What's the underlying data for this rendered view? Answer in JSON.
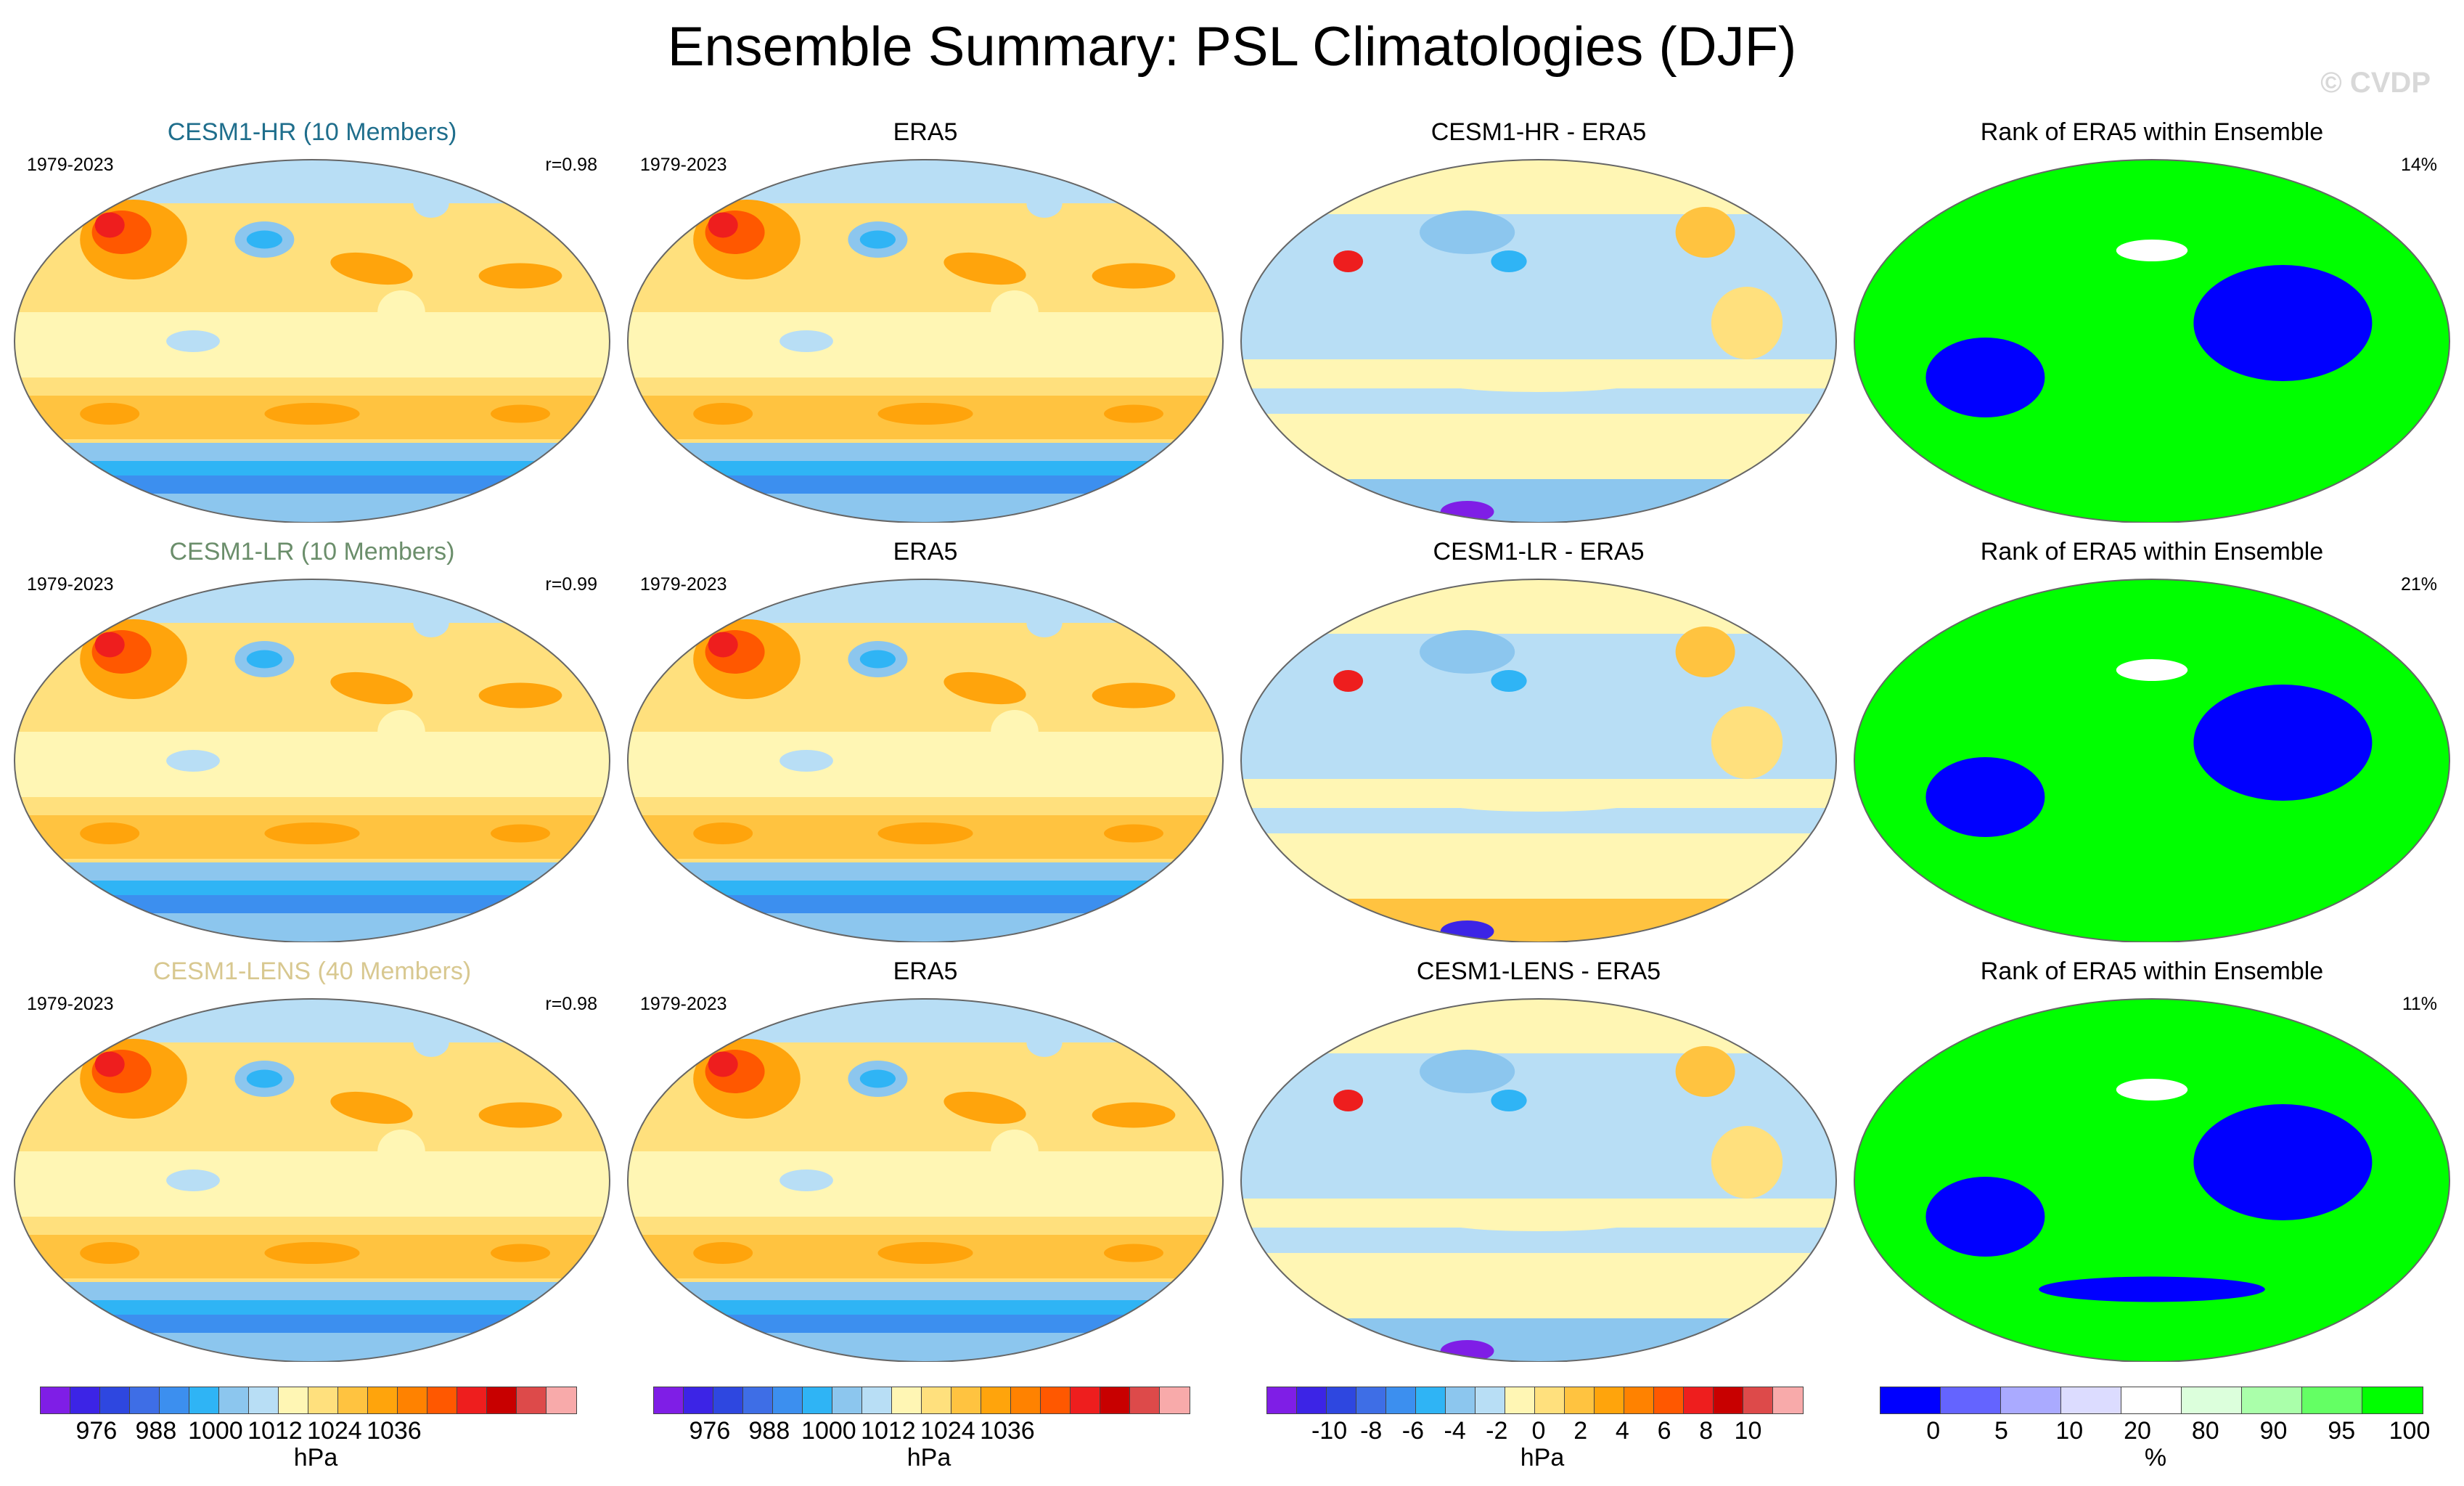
{
  "title": "Ensemble Summary: PSL Climatologies (DJF)",
  "watermark": "© CVDP",
  "colors": {
    "psl": [
      "#7f1ee6",
      "#3c24e6",
      "#2e47e0",
      "#3e6ee6",
      "#3c8fef",
      "#2fb4f5",
      "#8cc6ee",
      "#b8def5",
      "#fff6b4",
      "#ffe07d",
      "#ffc340",
      "#ffa40c",
      "#ff8200",
      "#ff5800",
      "#ee1e1e",
      "#c80000",
      "#dd4a4a",
      "#f8aaaa"
    ],
    "diff": [
      "#7f1ee6",
      "#3c24e6",
      "#2e47e0",
      "#3e6ee6",
      "#3c8fef",
      "#2fb4f5",
      "#8cc6ee",
      "#b8def5",
      "#fff6b4",
      "#ffe07d",
      "#ffc340",
      "#ffa40c",
      "#ff8200",
      "#ff5800",
      "#ee1e1e",
      "#c80000",
      "#dd4a4a",
      "#f8aaaa"
    ],
    "rank": [
      "#0000ff",
      "#6464ff",
      "#aaaaff",
      "#dcdcff",
      "#ffffff",
      "#dcffdc",
      "#aaffaa",
      "#64ff64",
      "#00ff00"
    ]
  },
  "rows": [
    {
      "model_label": "CESM1-HR (10 Members)",
      "model_color": "#1f6e8c",
      "period": "1979-2023",
      "r": "r=0.98",
      "obs_title": "ERA5",
      "obs_period": "1979-2023",
      "diff_title": "CESM1-HR - ERA5",
      "rank_title": "Rank of ERA5 within Ensemble",
      "rank_pct": "14%"
    },
    {
      "model_label": "CESM1-LR (10 Members)",
      "model_color": "#6b8e6b",
      "period": "1979-2023",
      "r": "r=0.99",
      "obs_title": "ERA5",
      "obs_period": "1979-2023",
      "diff_title": "CESM1-LR - ERA5",
      "rank_title": "Rank of ERA5 within Ensemble",
      "rank_pct": "21%"
    },
    {
      "model_label": "CESM1-LENS (40 Members)",
      "model_color": "#d8c890",
      "period": "1979-2023",
      "r": "r=0.98",
      "obs_title": "ERA5",
      "obs_period": "1979-2023",
      "diff_title": "CESM1-LENS - ERA5",
      "rank_title": "Rank of ERA5 within Ensemble",
      "rank_pct": "11%"
    }
  ],
  "colorbars": [
    {
      "ticks": [
        "976",
        "988",
        "1000",
        "1012",
        "1024",
        "1036"
      ],
      "unit": "hPa"
    },
    {
      "ticks": [
        "976",
        "988",
        "1000",
        "1012",
        "1024",
        "1036"
      ],
      "unit": "hPa"
    },
    {
      "ticks": [
        "-10",
        "-8",
        "-6",
        "-4",
        "-2",
        "0",
        "2",
        "4",
        "6",
        "8",
        "10"
      ],
      "unit": "hPa"
    },
    {
      "ticks": [
        "0",
        "5",
        "10",
        "20",
        "80",
        "90",
        "95",
        "100"
      ],
      "unit": "%"
    }
  ]
}
